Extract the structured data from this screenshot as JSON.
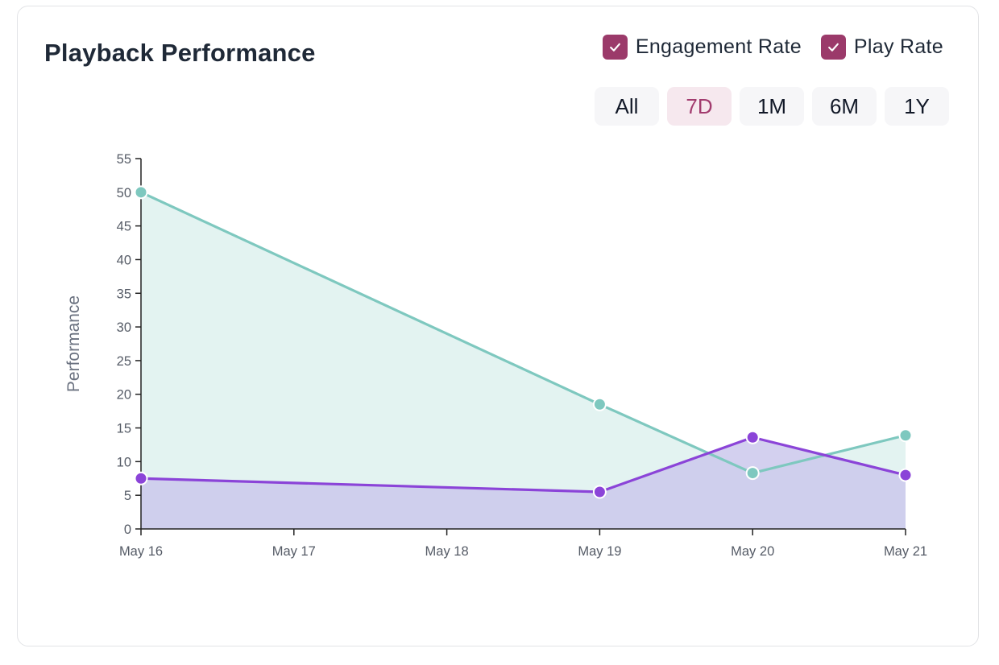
{
  "card": {
    "title": "Playback Performance"
  },
  "legend": [
    {
      "label": "Engagement Rate",
      "checked": true,
      "color": "#9b3a6a"
    },
    {
      "label": "Play Rate",
      "checked": true,
      "color": "#9b3a6a"
    }
  ],
  "ranges": [
    {
      "label": "All",
      "active": false
    },
    {
      "label": "7D",
      "active": true
    },
    {
      "label": "1M",
      "active": false
    },
    {
      "label": "6M",
      "active": false
    },
    {
      "label": "1Y",
      "active": false
    }
  ],
  "chart_data": {
    "type": "area",
    "title": "",
    "xlabel": "",
    "ylabel": "Performance",
    "ylim": [
      0,
      55
    ],
    "yticks": [
      0,
      5,
      10,
      15,
      20,
      25,
      30,
      35,
      40,
      45,
      50,
      55
    ],
    "x_dates": [
      "May 16",
      "May 17",
      "May 18",
      "May 19",
      "May 20",
      "May 21"
    ],
    "grid": false,
    "series": [
      {
        "name": "Engagement Rate",
        "color": "#7ec8bf",
        "fill": "#e3f3f1",
        "points": [
          {
            "x": "May 16",
            "y": 50
          },
          {
            "x": "May 19",
            "y": 18.5
          },
          {
            "x": "May 20",
            "y": 8.3
          },
          {
            "x": "May 21",
            "y": 13.9
          }
        ]
      },
      {
        "name": "Play Rate",
        "color": "#8b44d8",
        "fill": "#cbc8ec",
        "points": [
          {
            "x": "May 16",
            "y": 7.5
          },
          {
            "x": "May 19",
            "y": 5.5
          },
          {
            "x": "May 20",
            "y": 13.6
          },
          {
            "x": "May 21",
            "y": 8
          }
        ]
      }
    ]
  }
}
